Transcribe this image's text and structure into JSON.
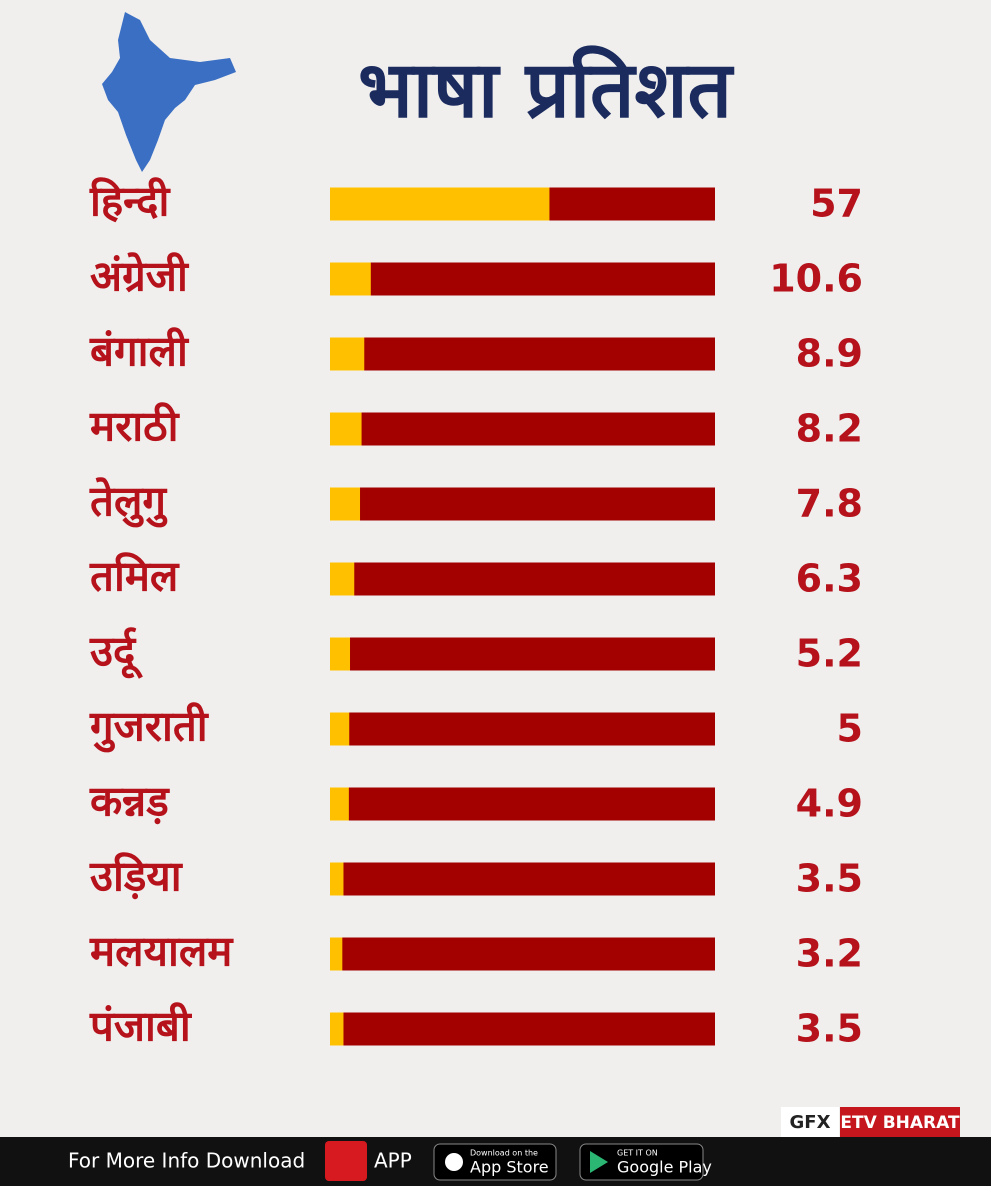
{
  "chart_data": {
    "type": "bar",
    "orientation": "horizontal",
    "title": "भाषा प्रतिशत",
    "categories": [
      "हिन्दी",
      "अंग्रेजी",
      "बंगाली",
      "मराठी",
      "तेलुगु",
      "तमिल",
      "उर्दू",
      "गुजराती",
      "कन्नड़",
      "उड़िया",
      "मलयालम",
      "पंजाबी"
    ],
    "values": [
      57,
      10.6,
      8.9,
      8.2,
      7.8,
      6.3,
      5.2,
      5,
      4.9,
      3.5,
      3.2,
      3.5
    ],
    "xlim": [
      0,
      100
    ],
    "color": "#ffc000",
    "track_color": "#a30000"
  },
  "footer": {
    "credit": "GFX",
    "brand": "ETV BHARAT",
    "download_text": "For More Info Download",
    "app_text": "APP",
    "app_store": {
      "small": "Download on the",
      "big": "App Store"
    },
    "google_play": {
      "small": "GET IT ON",
      "big": "Google Play"
    }
  }
}
